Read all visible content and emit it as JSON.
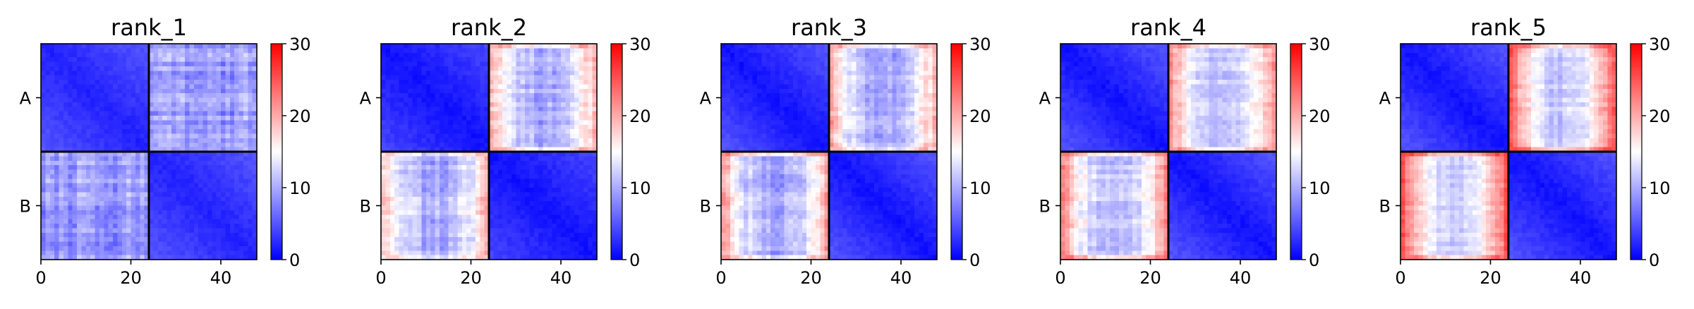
{
  "figure": {
    "background": "#ffffff"
  },
  "chart_data": {
    "type": "heatmap",
    "matrix_size": 48,
    "block_boundary": 24,
    "x_ticks": [
      0,
      20,
      40
    ],
    "xlim": [
      0,
      48
    ],
    "row_groups": [
      "A",
      "B"
    ],
    "colorbar": {
      "min": 0,
      "max": 30,
      "ticks": [
        0,
        10,
        20,
        30
      ],
      "colors": [
        "#0000ff",
        "#ffffff",
        "#ff0000"
      ],
      "midpoint": 15
    },
    "panels": [
      {
        "title": "rank_1",
        "within_block": {
          "near_diagonal": 2,
          "far_from_diagonal": 5
        },
        "between_blocks": {
          "center": 9,
          "edge": 9,
          "noise": 2.5
        }
      },
      {
        "title": "rank_2",
        "within_block": {
          "near_diagonal": 1,
          "far_from_diagonal": 4
        },
        "between_blocks": {
          "center": 10,
          "edge": 19,
          "noise": 2.2
        }
      },
      {
        "title": "rank_3",
        "within_block": {
          "near_diagonal": 1,
          "far_from_diagonal": 5
        },
        "between_blocks": {
          "center": 10,
          "edge": 20,
          "noise": 2.2
        }
      },
      {
        "title": "rank_4",
        "within_block": {
          "near_diagonal": 1,
          "far_from_diagonal": 5
        },
        "between_blocks": {
          "center": 11,
          "edge": 22,
          "noise": 2
        }
      },
      {
        "title": "rank_5",
        "within_block": {
          "near_diagonal": 1,
          "far_from_diagonal": 5
        },
        "between_blocks": {
          "center": 12,
          "edge": 25,
          "noise": 1.8
        }
      }
    ]
  }
}
